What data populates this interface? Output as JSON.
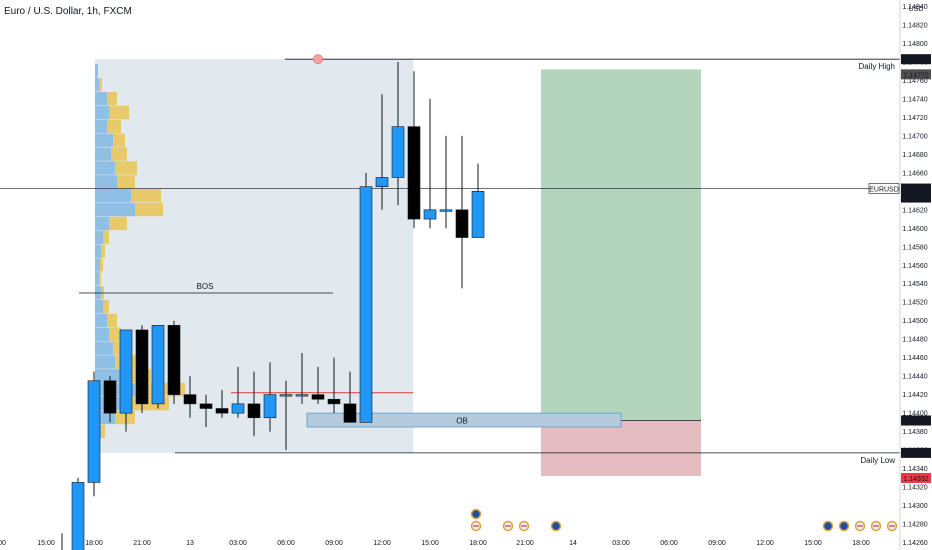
{
  "symbol": "Euro / U.S. Dollar, 1h, FXCM",
  "currency": "USD",
  "price_ticks": [
    "1.14840",
    "1.14820",
    "1.14800",
    "1.14780",
    "1.14760",
    "1.14740",
    "1.14720",
    "1.14700",
    "1.14680",
    "1.14660",
    "1.14640",
    "1.14620",
    "1.14600",
    "1.14580",
    "1.14560",
    "1.14540",
    "1.14520",
    "1.14500",
    "1.14480",
    "1.14460",
    "1.14440",
    "1.14420",
    "1.14400",
    "1.14380",
    "1.14360",
    "1.14340",
    "1.14320",
    "1.14300",
    "1.14280",
    "1.14260"
  ],
  "time_ticks": [
    "00",
    "15:00",
    "18:00",
    "21:00",
    "13",
    "03:00",
    "06:00",
    "09:00",
    "12:00",
    "15:00",
    "18:00",
    "21:00",
    "14",
    "03:00",
    "06:00",
    "09:00",
    "12:00",
    "15:00",
    "18:00"
  ],
  "levels": {
    "daily_high": {
      "label": "Daily High",
      "price": "1.14783",
      "sub": "1.14772"
    },
    "current": {
      "label": "EURUSD",
      "price": "1.14643",
      "countdown": "31:59"
    },
    "position_mid": {
      "price": "1.14392"
    },
    "daily_low": {
      "label": "Daily Low",
      "price": "1.14357",
      "stop": "1.14332"
    }
  },
  "annotations": {
    "bos": "BOS",
    "ob": "OB"
  },
  "colors": {
    "bull": "#2196f3",
    "bear": "#000000",
    "profit_zone": "#b4d5bd",
    "loss_zone": "#e4bcc1",
    "vp_blue": "#90bfe6",
    "vp_yellow": "#e8c96c",
    "range_box": "#d7e1ea",
    "ob_box": "#b3cbdc",
    "stop_badge": "#f23645",
    "axis_badge": "#131722"
  },
  "candles": [
    {
      "o": 1.1424,
      "h": 1.1427,
      "l": 1.1424,
      "c": 1.1424
    },
    {
      "o": 1.1424,
      "h": 1.1433,
      "l": 1.1424,
      "c": 1.14325
    },
    {
      "o": 1.14325,
      "h": 1.14445,
      "l": 1.1431,
      "c": 1.14435
    },
    {
      "o": 1.14435,
      "h": 1.1444,
      "l": 1.1439,
      "c": 1.144
    },
    {
      "o": 1.144,
      "h": 1.1449,
      "l": 1.1438,
      "c": 1.1449
    },
    {
      "o": 1.1449,
      "h": 1.14495,
      "l": 1.144,
      "c": 1.1441
    },
    {
      "o": 1.1441,
      "h": 1.14495,
      "l": 1.14405,
      "c": 1.14495
    },
    {
      "o": 1.14495,
      "h": 1.145,
      "l": 1.1441,
      "c": 1.1442
    },
    {
      "o": 1.1442,
      "h": 1.1444,
      "l": 1.14395,
      "c": 1.1441
    },
    {
      "o": 1.1441,
      "h": 1.1442,
      "l": 1.14385,
      "c": 1.14405
    },
    {
      "o": 1.14405,
      "h": 1.14425,
      "l": 1.14395,
      "c": 1.144
    },
    {
      "o": 1.144,
      "h": 1.1445,
      "l": 1.14395,
      "c": 1.1441
    },
    {
      "o": 1.1441,
      "h": 1.14445,
      "l": 1.14375,
      "c": 1.14395
    },
    {
      "o": 1.14395,
      "h": 1.14455,
      "l": 1.1438,
      "c": 1.1442
    },
    {
      "o": 1.1442,
      "h": 1.14435,
      "l": 1.1436,
      "c": 1.1442
    },
    {
      "o": 1.1442,
      "h": 1.14465,
      "l": 1.1441,
      "c": 1.1442
    },
    {
      "o": 1.1442,
      "h": 1.1445,
      "l": 1.1441,
      "c": 1.14415
    },
    {
      "o": 1.14415,
      "h": 1.1446,
      "l": 1.144,
      "c": 1.1441
    },
    {
      "o": 1.1441,
      "h": 1.14445,
      "l": 1.1439,
      "c": 1.1439
    },
    {
      "o": 1.1439,
      "h": 1.1466,
      "l": 1.1439,
      "c": 1.14645
    },
    {
      "o": 1.14645,
      "h": 1.14745,
      "l": 1.1462,
      "c": 1.14655
    },
    {
      "o": 1.14655,
      "h": 1.1478,
      "l": 1.14625,
      "c": 1.1471
    },
    {
      "o": 1.1471,
      "h": 1.1477,
      "l": 1.146,
      "c": 1.1461
    },
    {
      "o": 1.1461,
      "h": 1.1474,
      "l": 1.146,
      "c": 1.1462
    },
    {
      "o": 1.1462,
      "h": 1.147,
      "l": 1.146,
      "c": 1.1462
    },
    {
      "o": 1.1462,
      "h": 1.147,
      "l": 1.14535,
      "c": 1.1459
    },
    {
      "o": 1.1459,
      "h": 1.1467,
      "l": 1.1459,
      "c": 1.1464
    }
  ],
  "volume_profile": [
    {
      "p": 1.1477,
      "b": 3,
      "y": 0
    },
    {
      "p": 1.14755,
      "b": 4,
      "y": 3
    },
    {
      "p": 1.1474,
      "b": 12,
      "y": 10
    },
    {
      "p": 1.14725,
      "b": 14,
      "y": 20
    },
    {
      "p": 1.1471,
      "b": 12,
      "y": 14
    },
    {
      "p": 1.14695,
      "b": 18,
      "y": 12
    },
    {
      "p": 1.1468,
      "b": 16,
      "y": 16
    },
    {
      "p": 1.14665,
      "b": 20,
      "y": 22
    },
    {
      "p": 1.1465,
      "b": 22,
      "y": 18
    },
    {
      "p": 1.14635,
      "b": 36,
      "y": 30
    },
    {
      "p": 1.1462,
      "b": 40,
      "y": 28
    },
    {
      "p": 1.14605,
      "b": 14,
      "y": 18
    },
    {
      "p": 1.1459,
      "b": 8,
      "y": 6
    },
    {
      "p": 1.14575,
      "b": 6,
      "y": 4
    },
    {
      "p": 1.1456,
      "b": 5,
      "y": 3
    },
    {
      "p": 1.14545,
      "b": 4,
      "y": 2
    },
    {
      "p": 1.1453,
      "b": 6,
      "y": 3
    },
    {
      "p": 1.14515,
      "b": 8,
      "y": 6
    },
    {
      "p": 1.145,
      "b": 12,
      "y": 10
    },
    {
      "p": 1.14485,
      "b": 14,
      "y": 12
    },
    {
      "p": 1.1447,
      "b": 18,
      "y": 16
    },
    {
      "p": 1.14455,
      "b": 20,
      "y": 22
    },
    {
      "p": 1.1444,
      "b": 26,
      "y": 30
    },
    {
      "p": 1.14425,
      "b": 40,
      "y": 50
    },
    {
      "p": 1.1441,
      "b": 36,
      "y": 38
    },
    {
      "p": 1.14395,
      "b": 20,
      "y": 20
    },
    {
      "p": 1.1438,
      "b": 6,
      "y": 4
    }
  ],
  "events": [
    {
      "t": 25,
      "kind": "blue"
    },
    {
      "t": 25,
      "kind": "us"
    },
    {
      "t": 27,
      "kind": "us"
    },
    {
      "t": 28,
      "kind": "us"
    },
    {
      "t": 30,
      "kind": "blue"
    },
    {
      "t": 47,
      "kind": "blue"
    },
    {
      "t": 48,
      "kind": "blue"
    },
    {
      "t": 49,
      "kind": "us"
    },
    {
      "t": 50,
      "kind": "us"
    },
    {
      "t": 51,
      "kind": "us"
    },
    {
      "t": 54,
      "kind": "blue"
    }
  ]
}
